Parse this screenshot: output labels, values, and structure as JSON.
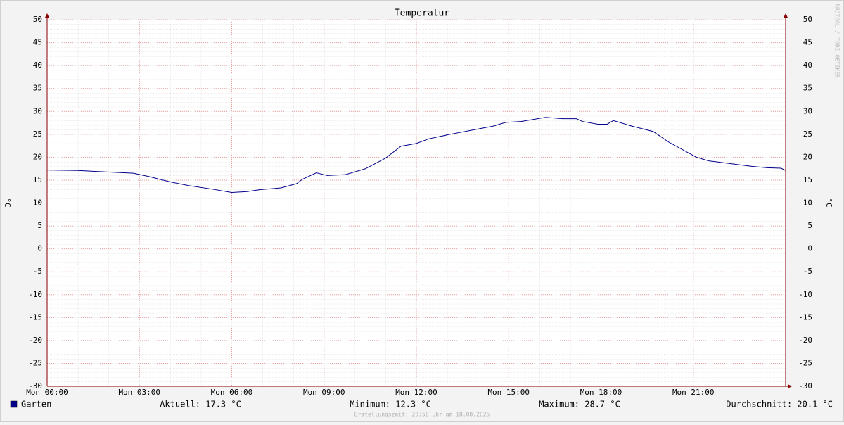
{
  "chart_data": {
    "type": "line",
    "title": "Temperatur",
    "y_label": "°C",
    "watermark": "RRDTOOL / TOBI OETIKER",
    "footer": "Erstellungszeit: 23:58 Uhr am 18.08.2025",
    "x": [
      0,
      1,
      1.9,
      2.8,
      3.3,
      4,
      4.6,
      5.3,
      6,
      6.5,
      6.9,
      7.6,
      8.1,
      8.3,
      8.75,
      9.1,
      9.7,
      10.35,
      11,
      11.5,
      12,
      12.4,
      13.1,
      13.8,
      14.5,
      14.9,
      15.4,
      16.2,
      16.75,
      17.2,
      17.4,
      17.9,
      18.2,
      18.4,
      19,
      19.7,
      20.2,
      21.1,
      21.5,
      22.2,
      22.9,
      23.4,
      23.85,
      24
    ],
    "series": [
      {
        "name": "Garten",
        "color": "#00008b",
        "values": [
          17.2,
          17.1,
          16.8,
          16.5,
          15.8,
          14.6,
          13.8,
          13.1,
          12.3,
          12.5,
          12.9,
          13.3,
          14.2,
          15.2,
          16.6,
          16.0,
          16.2,
          17.5,
          19.8,
          22.4,
          23.0,
          24.0,
          25.0,
          25.9,
          26.8,
          27.6,
          27.8,
          28.7,
          28.4,
          28.4,
          27.8,
          27.2,
          27.2,
          28.0,
          26.8,
          25.6,
          23.3,
          20.0,
          19.2,
          18.6,
          18.0,
          17.7,
          17.6,
          17.1
        ]
      }
    ],
    "stats": [
      "Aktuell: 17.3 °C",
      "Minimum: 12.3 °C",
      "Maximum: 28.7 °C",
      "Durchschnitt: 20.1 °C"
    ],
    "xlim": [
      0,
      24
    ],
    "xticks": [
      {
        "value": 0,
        "label": "Mon 00:00"
      },
      {
        "value": 3,
        "label": "Mon 03:00"
      },
      {
        "value": 6,
        "label": "Mon 06:00"
      },
      {
        "value": 9,
        "label": "Mon 09:00"
      },
      {
        "value": 12,
        "label": "Mon 12:00"
      },
      {
        "value": 15,
        "label": "Mon 15:00"
      },
      {
        "value": 18,
        "label": "Mon 18:00"
      },
      {
        "value": 21,
        "label": "Mon 21:00"
      }
    ],
    "ylim": [
      -30,
      50
    ],
    "yticks": [
      -30,
      -25,
      -20,
      -15,
      -10,
      -5,
      0,
      5,
      10,
      15,
      20,
      25,
      30,
      35,
      40,
      45,
      50
    ],
    "grid": true
  }
}
